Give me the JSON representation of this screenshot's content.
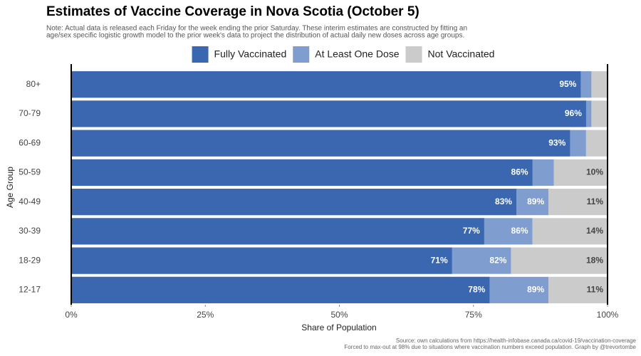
{
  "chart_data": {
    "type": "bar",
    "orientation": "horizontal",
    "title": "Estimates of Vaccine Coverage in Nova Scotia (October 5)",
    "note": [
      "Note: Actual data is released each Friday for the week ending the prior Saturday. These interim estimates are constructed by fitting an",
      "age/sex specific logistic growth model to the prior week's data to project the distribution of actual daily new doses across age groups."
    ],
    "source": [
      "Source: own calculations from https://health-infobase.canada.ca/covid-19/vaccination-coverage",
      "Forced to max-out at 98% due to situations where vaccination numbers exceed population. Graph by @trevortombe"
    ],
    "x_label": "Share of Population",
    "y_label": "Age Group",
    "categories": [
      "80+",
      "70-79",
      "60-69",
      "50-59",
      "40-49",
      "30-39",
      "18-29",
      "12-17"
    ],
    "series": [
      {
        "name": "Fully Vaccinated",
        "color": "#3a67b0",
        "values": [
          95,
          96,
          93,
          86,
          83,
          77,
          71,
          78
        ],
        "value_labels": [
          "95%",
          "96%",
          "93%",
          "86%",
          "83%",
          "77%",
          "71%",
          "78%"
        ]
      },
      {
        "name": "At Least One Dose",
        "color": "#7f9dcf",
        "values": [
          97,
          97,
          96,
          90,
          89,
          86,
          82,
          89
        ],
        "value_labels": [
          null,
          null,
          null,
          null,
          "89%",
          "86%",
          "82%",
          "89%"
        ]
      },
      {
        "name": "Not Vaccinated",
        "color": "#cbcbcb",
        "values": [
          3,
          3,
          4,
          10,
          11,
          14,
          18,
          11
        ],
        "value_labels": [
          null,
          null,
          null,
          "10%",
          "11%",
          "14%",
          "18%",
          "11%"
        ]
      }
    ],
    "xlim": [
      0,
      100
    ],
    "xticks": [
      {
        "value": 0,
        "label": "0%"
      },
      {
        "value": 25,
        "label": "25%"
      },
      {
        "value": 50,
        "label": "50%"
      },
      {
        "value": 75,
        "label": "75%"
      },
      {
        "value": 100,
        "label": "100%"
      }
    ],
    "legend": "top"
  }
}
